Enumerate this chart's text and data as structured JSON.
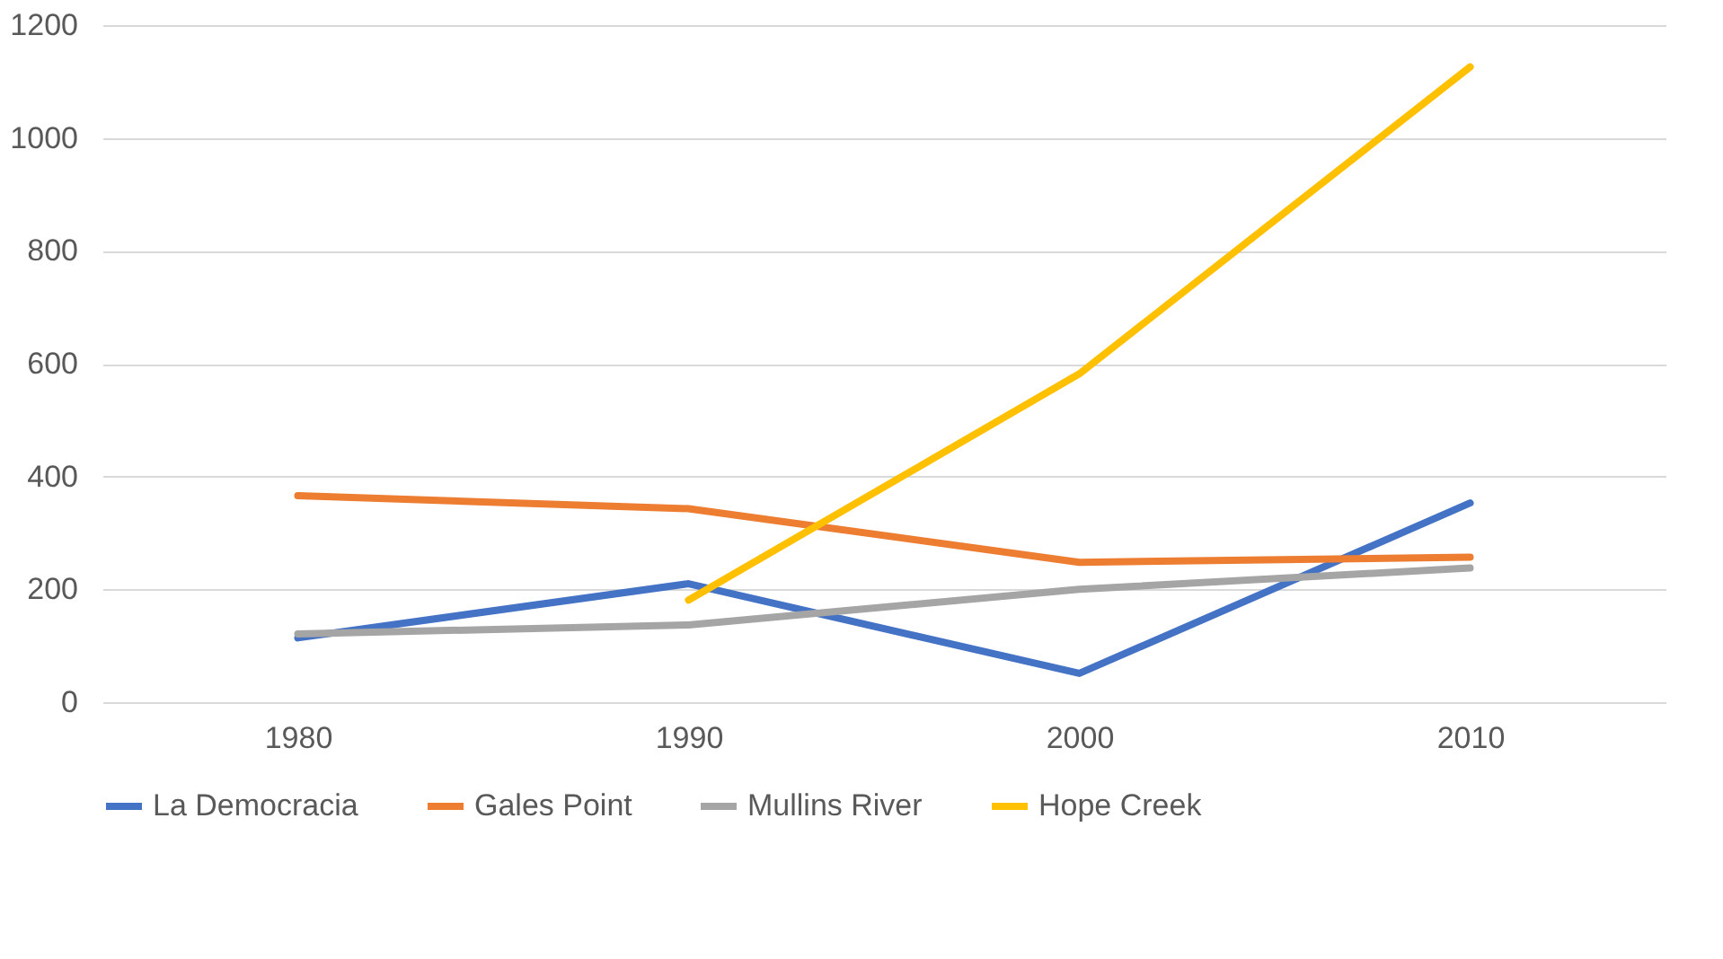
{
  "chart_data": {
    "type": "line",
    "categories": [
      "1980",
      "1990",
      "2000",
      "2010"
    ],
    "series": [
      {
        "name": "La Democracia",
        "color": "#4472c4",
        "values": [
          114,
          210,
          51,
          353
        ]
      },
      {
        "name": "Gales Point",
        "color": "#ed7d31",
        "values": [
          366,
          343,
          248,
          257
        ]
      },
      {
        "name": "Mullins River",
        "color": "#a5a5a5",
        "values": [
          121,
          137,
          200,
          238
        ]
      },
      {
        "name": "Hope Creek",
        "color": "#ffc000",
        "values": [
          null,
          181,
          582,
          1126
        ]
      }
    ],
    "ylim": [
      0,
      1200
    ],
    "yticks": [
      0,
      200,
      400,
      600,
      800,
      1000,
      1200
    ],
    "grid": "y",
    "legend": "bottom",
    "marker": "none",
    "line_style": "solid"
  }
}
